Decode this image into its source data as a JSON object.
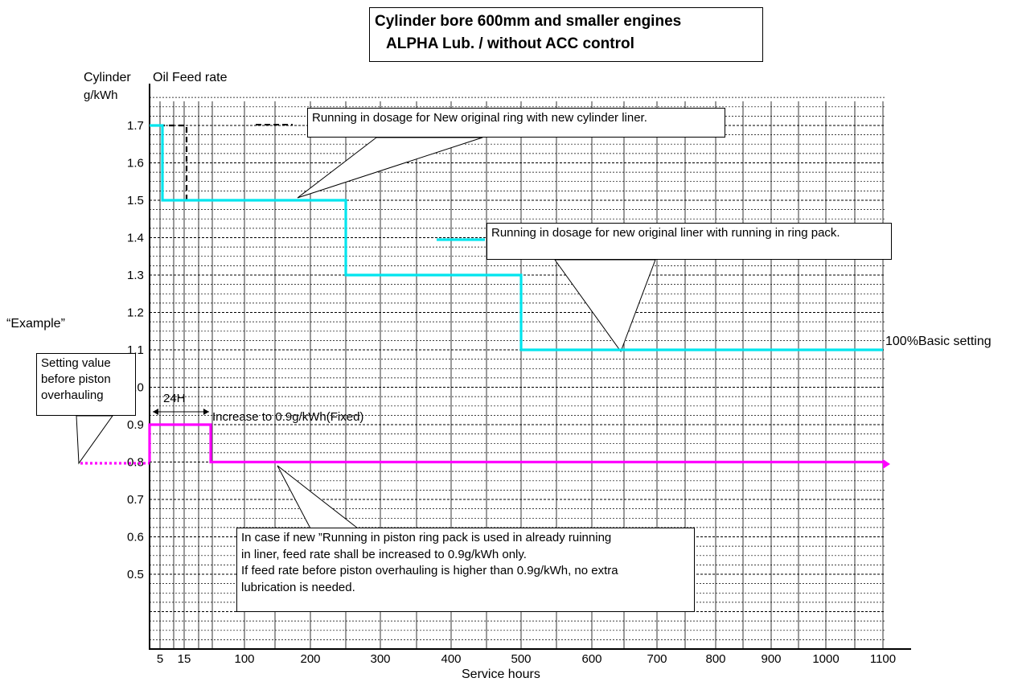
{
  "title": {
    "line1": "Cylinder bore 600mm and smaller engines",
    "line2": "ALPHA Lub. / without ACC control"
  },
  "labels": {
    "y_title_1": "Cylinder",
    "y_title_2": "Oil Feed rate",
    "y_unit": "g/kWh",
    "x_title": "Service hours",
    "example": "“Example”",
    "basic_setting": "100%Basic setting",
    "increase": "Increase to 0.9g/kWh(Fixed)",
    "span_24h": "24H"
  },
  "callouts": {
    "new_ring_liner": "Running in dosage for New original ring with new cylinder liner.",
    "new_liner": "Running in dosage for new original liner with running in ring pack.",
    "setting_value": "Setting value before piston overhauling",
    "note": [
      "In case if new ”Running in piston ring pack  is used in already ruinning",
      "in liner, feed rate shall be increased to 0.9g/kWh only.",
      "If feed rate before piston overhauling is higher than 0.9g/kWh, no extra",
      "lubrication is needed."
    ]
  },
  "colors": {
    "new_ring_liner": "#000000",
    "new_liner": "#00e5ee",
    "example": "#ff00ff"
  },
  "chart_data": {
    "type": "line",
    "x_ticks": [
      5,
      15,
      100,
      200,
      300,
      400,
      500,
      600,
      700,
      800,
      900,
      1000,
      1100
    ],
    "y_ticks": [
      0.5,
      0.6,
      0.7,
      0.8,
      0.9,
      1.0,
      1.1,
      1.2,
      1.3,
      1.4,
      1.5,
      1.6,
      1.7
    ],
    "xlim": [
      0,
      1100
    ],
    "ylim": [
      0.5,
      1.7
    ],
    "grid": true,
    "series": [
      {
        "name": "Running in dosage for New original ring with new cylinder liner.",
        "style": "dashed",
        "points": [
          [
            0,
            1.7
          ],
          [
            55,
            1.7
          ],
          [
            55,
            1.5
          ],
          [
            300,
            1.5
          ],
          [
            300,
            1.3
          ],
          [
            550,
            1.3
          ],
          [
            550,
            1.1
          ],
          [
            1100,
            1.1
          ]
        ]
      },
      {
        "name": "Running in dosage for new original liner with running in ring pack.",
        "style": "solid",
        "points": [
          [
            0,
            1.7
          ],
          [
            20,
            1.7
          ],
          [
            20,
            1.5
          ],
          [
            300,
            1.5
          ],
          [
            300,
            1.3
          ],
          [
            550,
            1.3
          ],
          [
            550,
            1.1
          ],
          [
            1100,
            1.1
          ]
        ]
      },
      {
        "name": "Example",
        "style": "solid",
        "points": [
          [
            0,
            0.8
          ],
          [
            0,
            0.9
          ],
          [
            90,
            0.9
          ],
          [
            90,
            0.8
          ],
          [
            1100,
            0.8
          ]
        ]
      }
    ]
  }
}
